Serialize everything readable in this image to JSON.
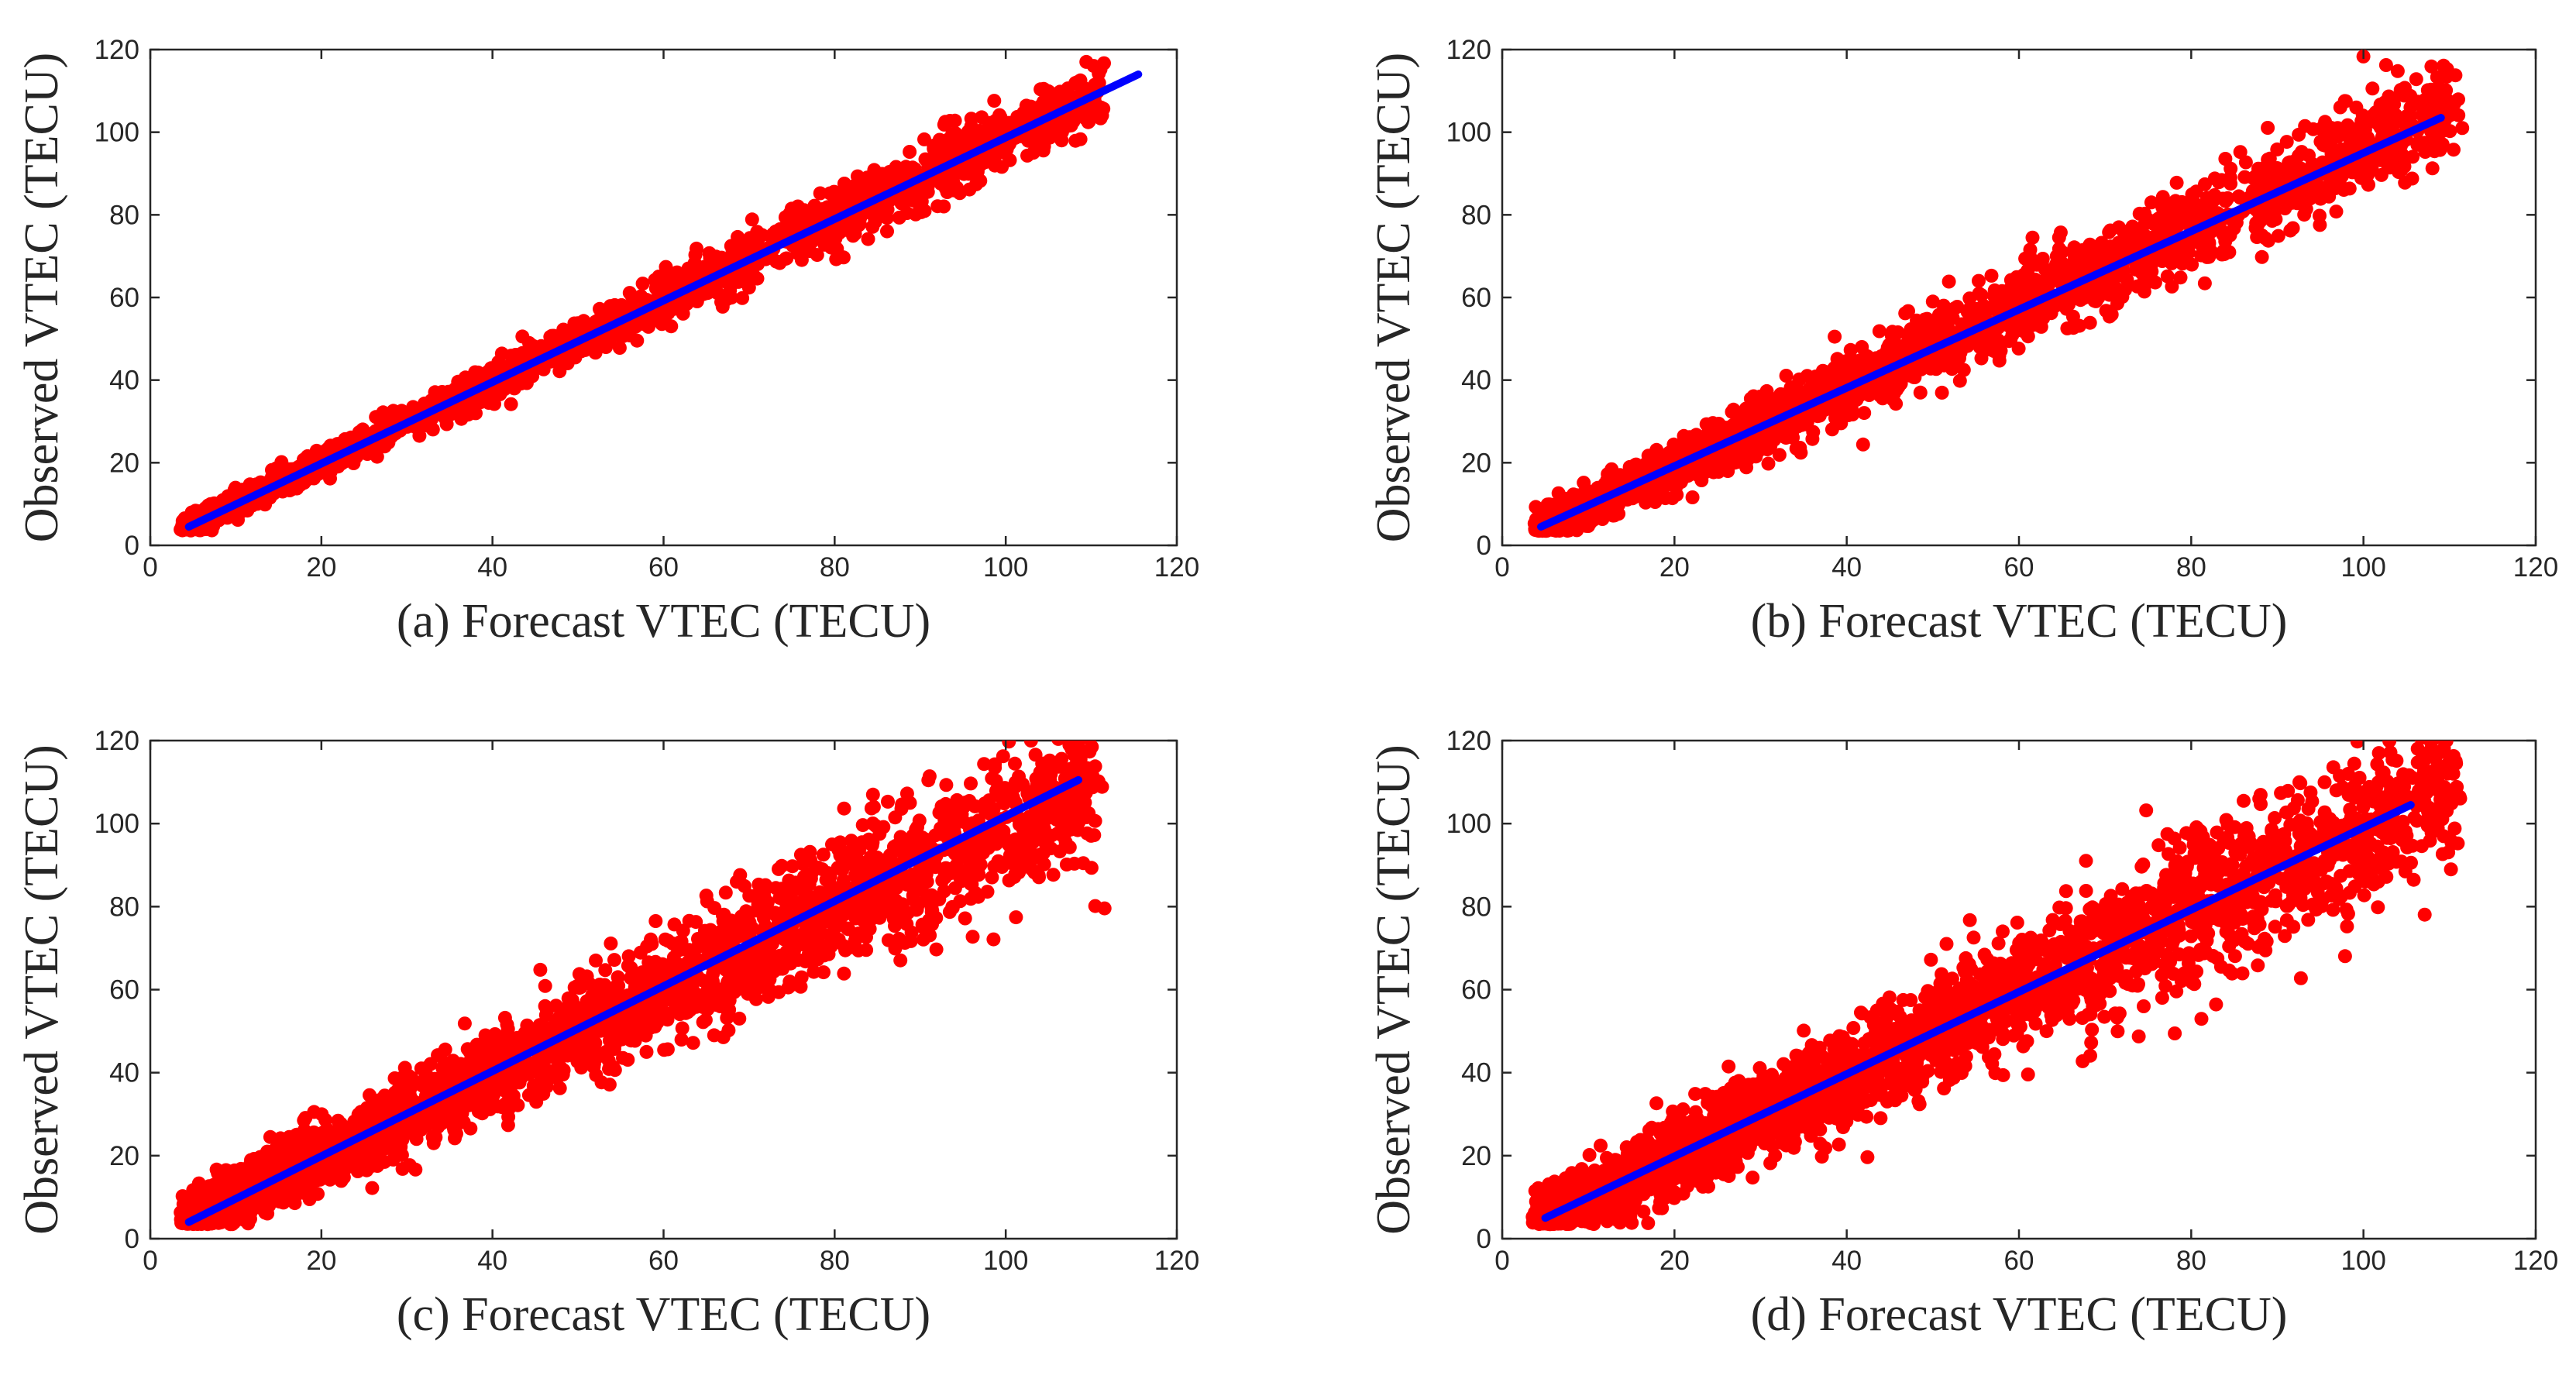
{
  "colors": {
    "points": "#ff0000",
    "fit_line": "#0000ff",
    "axes": "#262626"
  },
  "chart_data": [
    {
      "type": "scatter",
      "panel": "a",
      "xlabel": "(a) Forecast VTEC (TECU)",
      "ylabel": "Observed VTEC (TECU)",
      "xlim": [
        0,
        120
      ],
      "ylim": [
        0,
        120
      ],
      "xticks": [
        0,
        20,
        40,
        60,
        80,
        100,
        120
      ],
      "yticks": [
        0,
        20,
        40,
        60,
        80,
        100,
        120
      ],
      "series": [
        {
          "name": "samples",
          "kind": "scatter",
          "x_range": [
            3.5,
            115.5
          ],
          "mean_slope": 0.99,
          "spread": 3.0,
          "count": 2200
        },
        {
          "name": "fit",
          "kind": "line",
          "x": [
            4.5,
            115.5
          ],
          "y": [
            4.5,
            114.0
          ]
        }
      ]
    },
    {
      "type": "scatter",
      "panel": "b",
      "xlabel": "(b) Forecast VTEC (TECU)",
      "ylabel": "Observed VTEC (TECU)",
      "xlim": [
        0,
        120
      ],
      "ylim": [
        0,
        120
      ],
      "xticks": [
        0,
        20,
        40,
        60,
        80,
        100,
        120
      ],
      "yticks": [
        0,
        20,
        40,
        60,
        80,
        100,
        120
      ],
      "series": [
        {
          "name": "samples",
          "kind": "scatter",
          "x_range": [
            3.5,
            115.5
          ],
          "mean_slope": 0.96,
          "spread": 5.0,
          "count": 2600
        },
        {
          "name": "fit",
          "kind": "line",
          "x": [
            4.5,
            109.0
          ],
          "y": [
            4.5,
            103.5
          ]
        }
      ]
    },
    {
      "type": "scatter",
      "panel": "c",
      "xlabel": "(c) Forecast VTEC (TECU)",
      "ylabel": "Observed VTEC (TECU)",
      "xlim": [
        0,
        120
      ],
      "ylim": [
        0,
        120
      ],
      "xticks": [
        0,
        20,
        40,
        60,
        80,
        100,
        120
      ],
      "yticks": [
        0,
        20,
        40,
        60,
        80,
        100,
        120
      ],
      "series": [
        {
          "name": "samples",
          "kind": "scatter",
          "x_range": [
            3.5,
            115.5
          ],
          "mean_slope": 1.0,
          "spread": 7.0,
          "count": 3000
        },
        {
          "name": "fit",
          "kind": "line",
          "x": [
            4.5,
            108.5
          ],
          "y": [
            4.0,
            110.5
          ]
        }
      ]
    },
    {
      "type": "scatter",
      "panel": "d",
      "xlabel": "(d) Forecast VTEC (TECU)",
      "ylabel": "Observed VTEC (TECU)",
      "xlim": [
        0,
        120
      ],
      "ylim": [
        0,
        120
      ],
      "xticks": [
        0,
        20,
        40,
        60,
        80,
        100,
        120
      ],
      "yticks": [
        0,
        20,
        40,
        60,
        80,
        100,
        120
      ],
      "series": [
        {
          "name": "samples",
          "kind": "scatter",
          "x_range": [
            3.5,
            115.5
          ],
          "mean_slope": 0.99,
          "spread": 8.0,
          "count": 3000
        },
        {
          "name": "fit",
          "kind": "line",
          "x": [
            5.0,
            105.5
          ],
          "y": [
            5.0,
            104.5
          ]
        }
      ]
    }
  ]
}
